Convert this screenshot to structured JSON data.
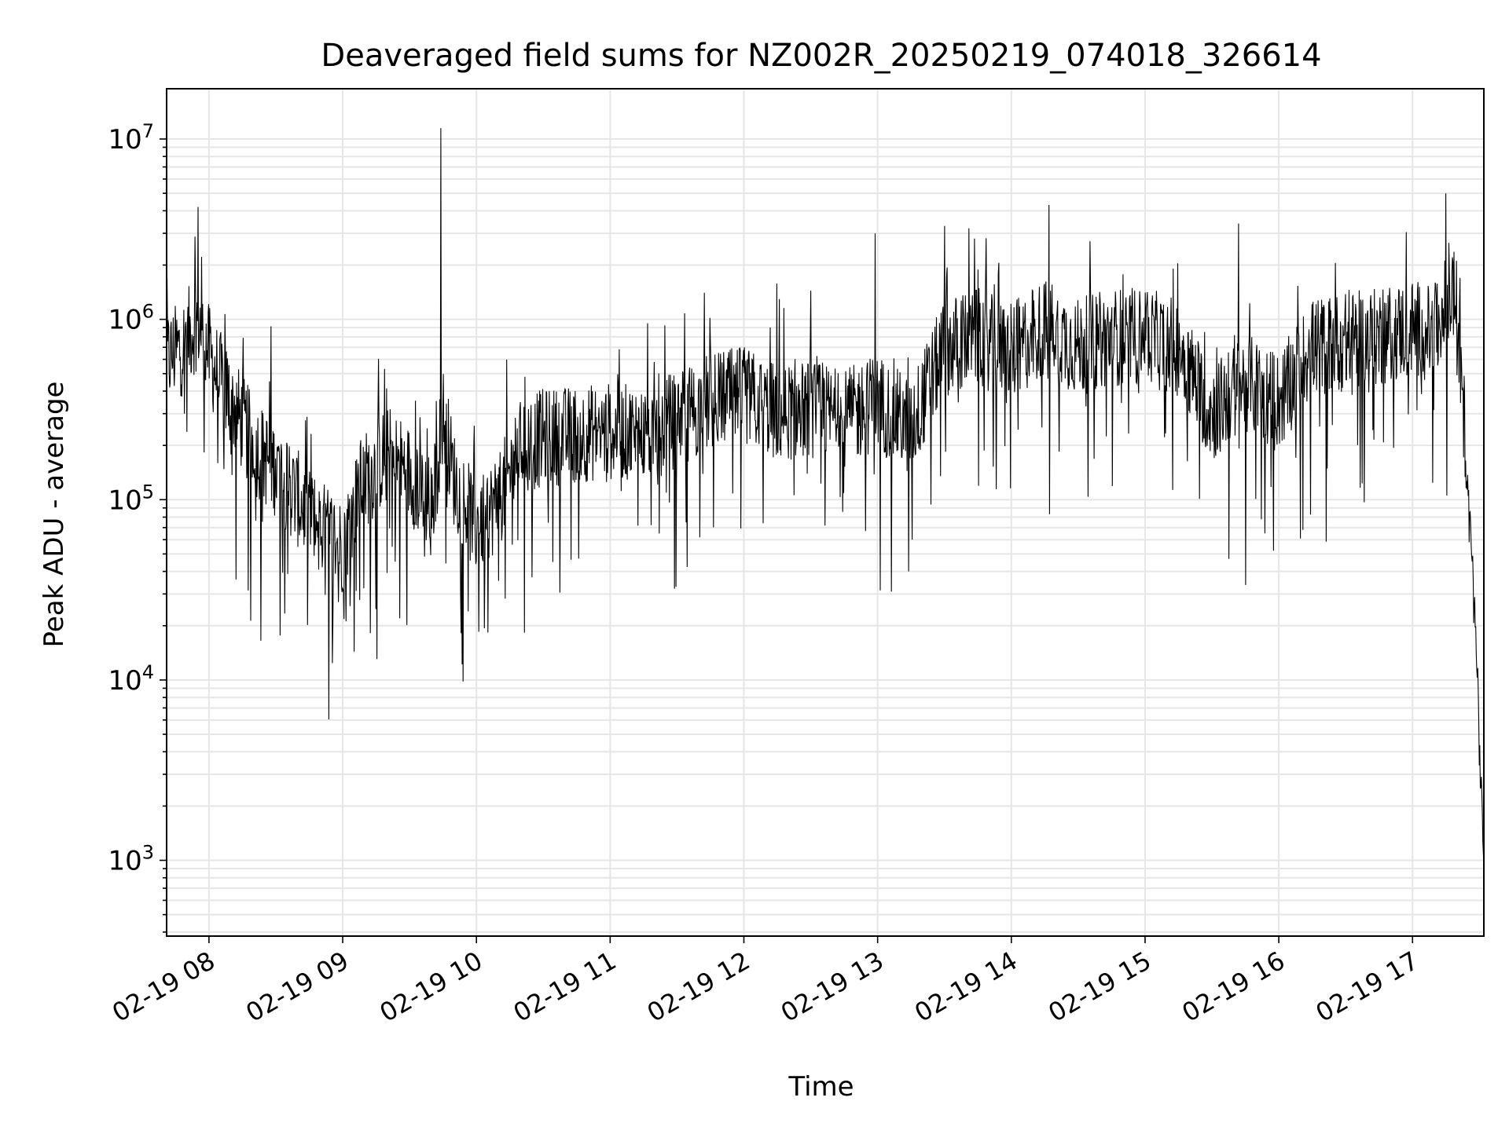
{
  "chart_data": {
    "type": "line",
    "title": "Deaveraged field sums for NZ002R_20250219_074018_326614",
    "xlabel": "Time",
    "ylabel": "Peak ADU - average",
    "yscale": "log",
    "ylim": [
      380,
      19000000
    ],
    "xlim": [
      "2025-02-19 07:41",
      "2025-02-19 17:32"
    ],
    "grid": true,
    "line_color": "#000000",
    "grid_color": "#e6e6e6",
    "x_ticks": [
      {
        "value": "2025-02-19 08:00",
        "label": "02-19 08"
      },
      {
        "value": "2025-02-19 09:00",
        "label": "02-19 09"
      },
      {
        "value": "2025-02-19 10:00",
        "label": "02-19 10"
      },
      {
        "value": "2025-02-19 11:00",
        "label": "02-19 11"
      },
      {
        "value": "2025-02-19 12:00",
        "label": "02-19 12"
      },
      {
        "value": "2025-02-19 13:00",
        "label": "02-19 13"
      },
      {
        "value": "2025-02-19 14:00",
        "label": "02-19 14"
      },
      {
        "value": "2025-02-19 15:00",
        "label": "02-19 15"
      },
      {
        "value": "2025-02-19 16:00",
        "label": "02-19 16"
      },
      {
        "value": "2025-02-19 17:00",
        "label": "02-19 17"
      }
    ],
    "y_ticks": [
      {
        "value": 1000,
        "base": "10",
        "exp": "3"
      },
      {
        "value": 10000,
        "base": "10",
        "exp": "4"
      },
      {
        "value": 100000,
        "base": "10",
        "exp": "5"
      },
      {
        "value": 1000000,
        "base": "10",
        "exp": "6"
      },
      {
        "value": 10000000,
        "base": "10",
        "exp": "7"
      }
    ],
    "series": [
      {
        "x": [
          "2025-02-19 07:41",
          "2025-02-19 07:48",
          "2025-02-19 07:55",
          "2025-02-19 08:02",
          "2025-02-19 08:10",
          "2025-02-19 08:20",
          "2025-02-19 08:30",
          "2025-02-19 08:40",
          "2025-02-19 08:50",
          "2025-02-19 09:00",
          "2025-02-19 09:08",
          "2025-02-19 09:20",
          "2025-02-19 09:30",
          "2025-02-19 09:40",
          "2025-02-19 09:45",
          "2025-02-19 09:50",
          "2025-02-19 10:00",
          "2025-02-19 10:10",
          "2025-02-19 10:20",
          "2025-02-19 10:30",
          "2025-02-19 10:45",
          "2025-02-19 11:00",
          "2025-02-19 11:15",
          "2025-02-19 11:30",
          "2025-02-19 11:45",
          "2025-02-19 12:00",
          "2025-02-19 12:15",
          "2025-02-19 12:30",
          "2025-02-19 12:45",
          "2025-02-19 13:00",
          "2025-02-19 13:15",
          "2025-02-19 13:30",
          "2025-02-19 13:45",
          "2025-02-19 14:00",
          "2025-02-19 14:15",
          "2025-02-19 14:30",
          "2025-02-19 14:45",
          "2025-02-19 15:00",
          "2025-02-19 15:15",
          "2025-02-19 15:30",
          "2025-02-19 15:45",
          "2025-02-19 16:00",
          "2025-02-19 16:15",
          "2025-02-19 16:30",
          "2025-02-19 16:45",
          "2025-02-19 17:00",
          "2025-02-19 17:10",
          "2025-02-19 17:15",
          "2025-02-19 17:18",
          "2025-02-19 17:20",
          "2025-02-19 17:25",
          "2025-02-19 17:28",
          "2025-02-19 17:32"
        ],
        "y": [
          600000,
          700000,
          1000000,
          550000,
          350000,
          200000,
          150000,
          100000,
          70000,
          55000,
          120000,
          180000,
          140000,
          90000,
          300000,
          130000,
          70000,
          100000,
          200000,
          220000,
          230000,
          240000,
          230000,
          280000,
          350000,
          380000,
          300000,
          320000,
          280000,
          350000,
          250000,
          700000,
          800000,
          650000,
          900000,
          700000,
          800000,
          800000,
          700000,
          300000,
          450000,
          350000,
          700000,
          750000,
          800000,
          900000,
          800000,
          1200000,
          1500000,
          1100000,
          120000,
          25000,
          1000
        ],
        "noise_decades": 0.55,
        "spikes": [
          {
            "x": "2025-02-19 07:55",
            "y": 4200000
          },
          {
            "x": "2025-02-19 09:44",
            "y": 11500000
          },
          {
            "x": "2025-02-19 12:59",
            "y": 3000000
          },
          {
            "x": "2025-02-19 13:30",
            "y": 3300000
          },
          {
            "x": "2025-02-19 15:42",
            "y": 3400000
          },
          {
            "x": "2025-02-19 10:01",
            "y": 18500
          },
          {
            "x": "2025-02-19 08:58",
            "y": 27000
          },
          {
            "x": "2025-02-19 13:14",
            "y": 40000
          }
        ]
      }
    ]
  }
}
